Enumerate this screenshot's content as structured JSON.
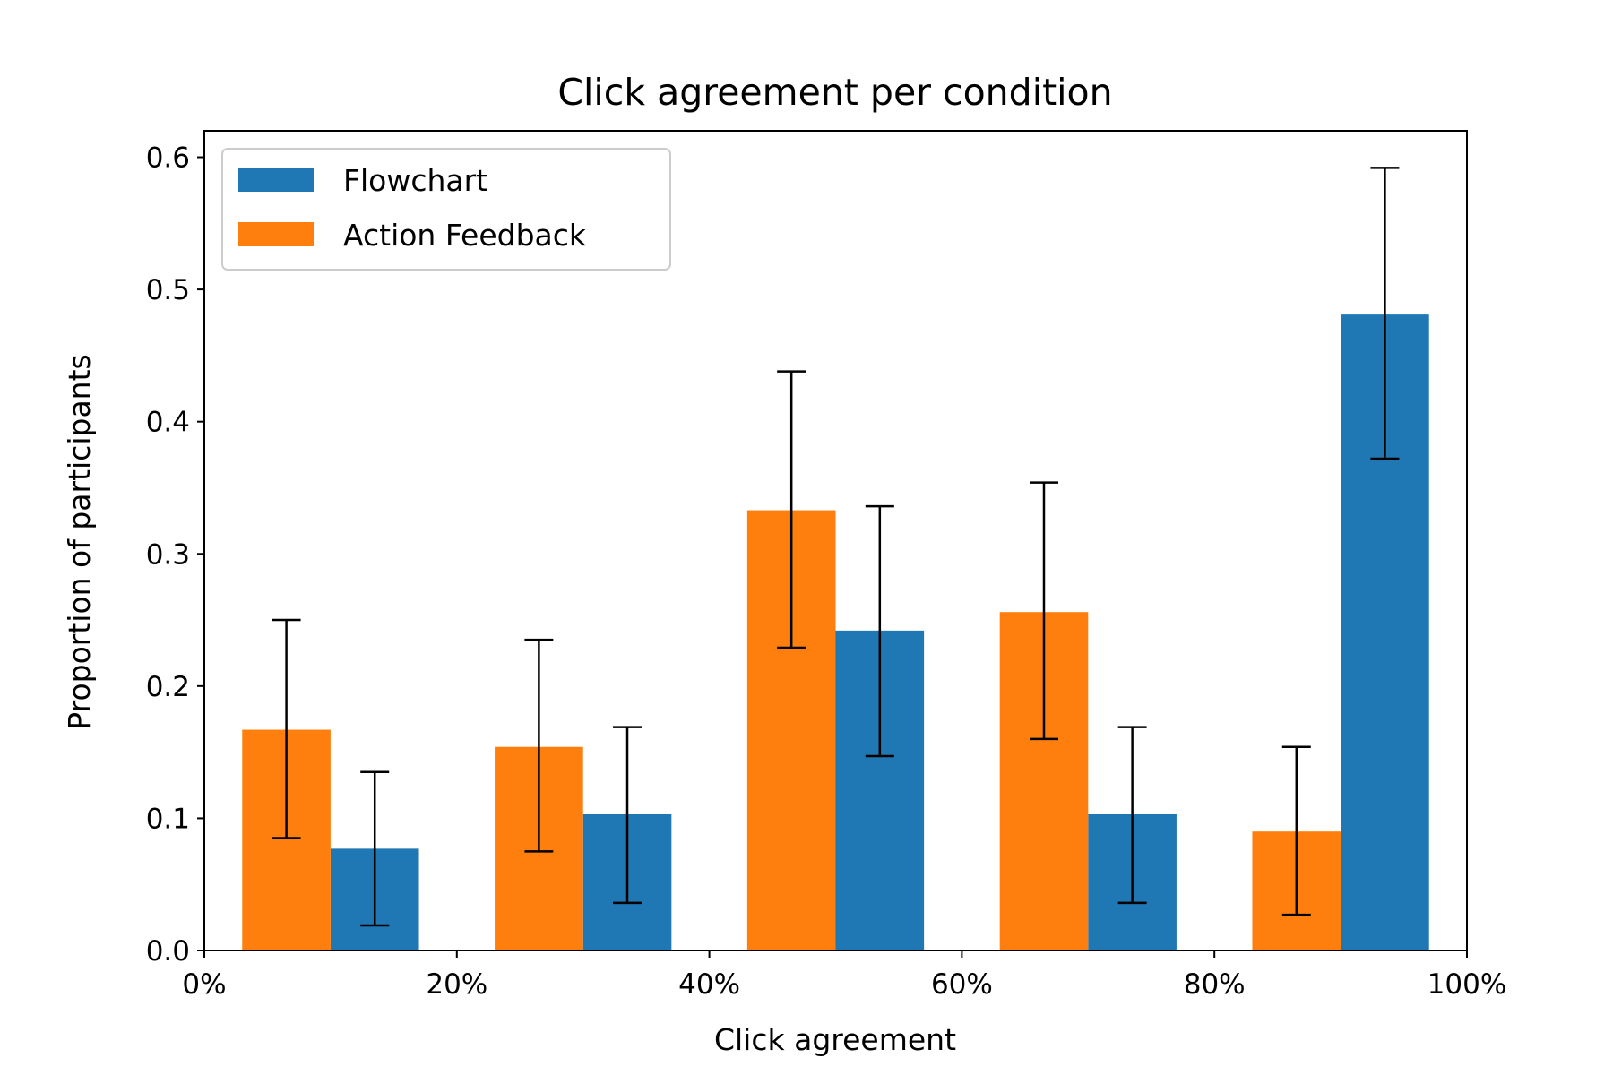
{
  "chart_data": {
    "type": "bar",
    "title": "Click agreement per condition",
    "xlabel": "Click agreement",
    "ylabel": "Proportion of participants",
    "xlim": [
      0,
      100
    ],
    "ylim": [
      0,
      0.62
    ],
    "xticks": [
      0,
      20,
      40,
      60,
      80,
      100
    ],
    "xtick_labels": [
      "0%",
      "20%",
      "40%",
      "60%",
      "80%",
      "100%"
    ],
    "yticks": [
      0.0,
      0.1,
      0.2,
      0.3,
      0.4,
      0.5,
      0.6
    ],
    "ytick_labels": [
      "0.0",
      "0.1",
      "0.2",
      "0.3",
      "0.4",
      "0.5",
      "0.6"
    ],
    "bins": [
      "0-20%",
      "20-40%",
      "40-60%",
      "60-80%",
      "80-100%"
    ],
    "legend_position": "top-left",
    "grid": false,
    "series": [
      {
        "name": "Flowchart",
        "color": "#1f77b4",
        "x_start": [
          10,
          30,
          50,
          70,
          90
        ],
        "x_end": [
          17,
          37,
          57,
          77,
          97
        ],
        "values": [
          0.077,
          0.103,
          0.242,
          0.103,
          0.481
        ],
        "err_low": [
          0.019,
          0.036,
          0.147,
          0.036,
          0.372
        ],
        "err_high": [
          0.135,
          0.169,
          0.336,
          0.169,
          0.592
        ]
      },
      {
        "name": "Action Feedback",
        "color": "#ff7f0e",
        "x_start": [
          3,
          23,
          43,
          63,
          83
        ],
        "x_end": [
          10,
          30,
          50,
          70,
          90
        ],
        "values": [
          0.167,
          0.154,
          0.333,
          0.256,
          0.09
        ],
        "err_low": [
          0.085,
          0.075,
          0.229,
          0.16,
          0.027
        ],
        "err_high": [
          0.25,
          0.235,
          0.438,
          0.354,
          0.154
        ]
      }
    ]
  }
}
